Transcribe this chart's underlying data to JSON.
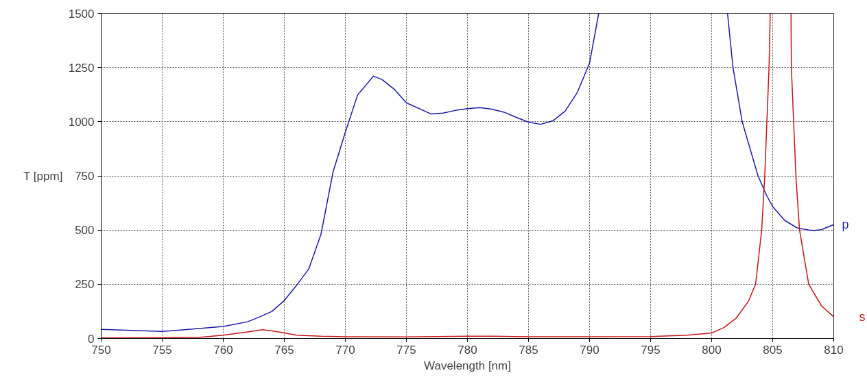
{
  "chart_data": {
    "type": "line",
    "xlabel": "Wavelength [nm]",
    "ylabel": "T [ppm]",
    "xlim": [
      750,
      810
    ],
    "xticks": [
      750,
      755,
      760,
      765,
      770,
      775,
      780,
      785,
      790,
      795,
      800,
      805,
      810
    ],
    "ylim": [
      0,
      1500
    ],
    "yticks": [
      0,
      250,
      500,
      750,
      1000,
      1250,
      1500
    ],
    "grid": true,
    "line_style": "solid",
    "marker": "none",
    "legend": false,
    "series": [
      {
        "name": "p",
        "color": "#1a1aa8",
        "x": [
          750,
          755,
          760,
          762,
          763,
          764,
          765,
          766,
          767,
          768,
          769,
          770,
          771,
          772.3,
          773,
          774,
          775,
          777,
          778,
          779,
          780,
          781,
          782,
          783,
          784,
          785,
          786,
          787,
          788,
          789,
          790,
          790.75,
          796,
          801.3,
          801.75,
          802.5,
          803.8,
          804.5,
          805,
          806,
          807,
          808,
          808.4,
          809,
          810
        ],
        "values": [
          42,
          32,
          55,
          77,
          100,
          125,
          175,
          245,
          320,
          480,
          770,
          952,
          1123,
          1210,
          1195,
          1150,
          1087,
          1036,
          1040,
          1052,
          1060,
          1065,
          1058,
          1044,
          1020,
          998,
          988,
          1004,
          1049,
          1135,
          1270,
          1500,
          null,
          1500,
          1250,
          1000,
          750,
          660,
          608,
          544,
          510,
          500,
          498,
          502,
          525
        ]
      },
      {
        "name": "s",
        "color": "#c81414",
        "x": [
          750,
          755,
          758,
          760,
          762,
          763.2,
          764,
          765,
          766,
          768,
          770,
          775,
          780,
          782,
          785,
          790,
          795,
          798,
          800,
          801,
          802,
          803,
          803.6,
          804.1,
          804.35,
          804.7,
          804.8,
          805.6,
          806.5,
          806.53,
          806.9,
          807.2,
          807.95,
          809,
          810
        ],
        "values": [
          2,
          3,
          5,
          15,
          30,
          40,
          35,
          25,
          15,
          10,
          8,
          7,
          10,
          10,
          8,
          8,
          9,
          15,
          25,
          50,
          93,
          170,
          250,
          500,
          750,
          1250,
          1500,
          null,
          1500,
          1250,
          750,
          500,
          250,
          150,
          100
        ]
      }
    ]
  }
}
